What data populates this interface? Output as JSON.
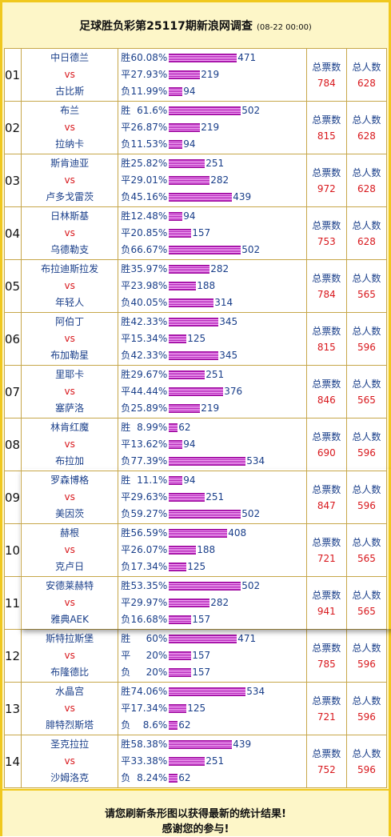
{
  "header": {
    "title": "足球胜负彩第25117期新浪网调查",
    "date": "(08-22 00:00)"
  },
  "labels": {
    "vs": "vs",
    "total_votes": "总票数",
    "total_people": "总人数"
  },
  "matches": [
    {
      "num": "01",
      "home": "中日德兰",
      "away": "古比斯",
      "rows": [
        {
          "label": "胜",
          "pct": "60.08%",
          "count": "471",
          "value": 471
        },
        {
          "label": "平",
          "pct": "27.93%",
          "count": "219",
          "value": 219
        },
        {
          "label": "负",
          "pct": "11.99%",
          "count": "94",
          "value": 94
        }
      ],
      "votes": "784",
      "people": "628"
    },
    {
      "num": "02",
      "home": "布兰",
      "away": "拉纳卡",
      "rows": [
        {
          "label": "胜",
          "pct": "61.6%",
          "count": "502",
          "value": 502
        },
        {
          "label": "平",
          "pct": "26.87%",
          "count": "219",
          "value": 219
        },
        {
          "label": "负",
          "pct": "11.53%",
          "count": "94",
          "value": 94
        }
      ],
      "votes": "815",
      "people": "628"
    },
    {
      "num": "03",
      "home": "斯肯迪亚",
      "away": "卢多戈雷茨",
      "rows": [
        {
          "label": "胜",
          "pct": "25.82%",
          "count": "251",
          "value": 251
        },
        {
          "label": "平",
          "pct": "29.01%",
          "count": "282",
          "value": 282
        },
        {
          "label": "负",
          "pct": "45.16%",
          "count": "439",
          "value": 439
        }
      ],
      "votes": "972",
      "people": "628"
    },
    {
      "num": "04",
      "home": "日林斯基",
      "away": "乌德勒支",
      "rows": [
        {
          "label": "胜",
          "pct": "12.48%",
          "count": "94",
          "value": 94
        },
        {
          "label": "平",
          "pct": "20.85%",
          "count": "157",
          "value": 157
        },
        {
          "label": "负",
          "pct": "66.67%",
          "count": "502",
          "value": 502
        }
      ],
      "votes": "753",
      "people": "628"
    },
    {
      "num": "05",
      "home": "布拉迪斯拉发",
      "away": "年轻人",
      "rows": [
        {
          "label": "胜",
          "pct": "35.97%",
          "count": "282",
          "value": 282
        },
        {
          "label": "平",
          "pct": "23.98%",
          "count": "188",
          "value": 188
        },
        {
          "label": "负",
          "pct": "40.05%",
          "count": "314",
          "value": 314
        }
      ],
      "votes": "784",
      "people": "565"
    },
    {
      "num": "06",
      "home": "阿伯丁",
      "away": "布加勒星",
      "rows": [
        {
          "label": "胜",
          "pct": "42.33%",
          "count": "345",
          "value": 345
        },
        {
          "label": "平",
          "pct": "15.34%",
          "count": "125",
          "value": 125
        },
        {
          "label": "负",
          "pct": "42.33%",
          "count": "345",
          "value": 345
        }
      ],
      "votes": "815",
      "people": "596"
    },
    {
      "num": "07",
      "home": "里耶卡",
      "away": "塞萨洛",
      "rows": [
        {
          "label": "胜",
          "pct": "29.67%",
          "count": "251",
          "value": 251
        },
        {
          "label": "平",
          "pct": "44.44%",
          "count": "376",
          "value": 376
        },
        {
          "label": "负",
          "pct": "25.89%",
          "count": "219",
          "value": 219
        }
      ],
      "votes": "846",
      "people": "565"
    },
    {
      "num": "08",
      "home": "林肯红魔",
      "away": "布拉加",
      "rows": [
        {
          "label": "胜",
          "pct": "8.99%",
          "count": "62",
          "value": 62
        },
        {
          "label": "平",
          "pct": "13.62%",
          "count": "94",
          "value": 94
        },
        {
          "label": "负",
          "pct": "77.39%",
          "count": "534",
          "value": 534
        }
      ],
      "votes": "690",
      "people": "596"
    },
    {
      "num": "09",
      "home": "罗森博格",
      "away": "美因茨",
      "rows": [
        {
          "label": "胜",
          "pct": "11.1%",
          "count": "94",
          "value": 94
        },
        {
          "label": "平",
          "pct": "29.63%",
          "count": "251",
          "value": 251
        },
        {
          "label": "负",
          "pct": "59.27%",
          "count": "502",
          "value": 502
        }
      ],
      "votes": "847",
      "people": "596"
    },
    {
      "num": "10",
      "home": "赫根",
      "away": "克卢日",
      "rows": [
        {
          "label": "胜",
          "pct": "56.59%",
          "count": "408",
          "value": 408
        },
        {
          "label": "平",
          "pct": "26.07%",
          "count": "188",
          "value": 188
        },
        {
          "label": "负",
          "pct": "17.34%",
          "count": "125",
          "value": 125
        }
      ],
      "votes": "721",
      "people": "565"
    },
    {
      "num": "11",
      "home": "安德莱赫特",
      "away": "雅典AEK",
      "rows": [
        {
          "label": "胜",
          "pct": "53.35%",
          "count": "502",
          "value": 502
        },
        {
          "label": "平",
          "pct": "29.97%",
          "count": "282",
          "value": 282
        },
        {
          "label": "负",
          "pct": "16.68%",
          "count": "157",
          "value": 157
        }
      ],
      "votes": "941",
      "people": "565"
    },
    {
      "num": "12",
      "home": "斯特拉斯堡",
      "away": "布隆德比",
      "rows": [
        {
          "label": "胜",
          "pct": "60%",
          "count": "471",
          "value": 471
        },
        {
          "label": "平",
          "pct": "20%",
          "count": "157",
          "value": 157
        },
        {
          "label": "负",
          "pct": "20%",
          "count": "157",
          "value": 157
        }
      ],
      "votes": "785",
      "people": "596"
    },
    {
      "num": "13",
      "home": "水晶宫",
      "away": "腓特烈斯塔",
      "rows": [
        {
          "label": "胜",
          "pct": "74.06%",
          "count": "534",
          "value": 534
        },
        {
          "label": "平",
          "pct": "17.34%",
          "count": "125",
          "value": 125
        },
        {
          "label": "负",
          "pct": "8.6%",
          "count": "62",
          "value": 62
        }
      ],
      "votes": "721",
      "people": "596"
    },
    {
      "num": "14",
      "home": "圣克拉拉",
      "away": "沙姆洛克",
      "rows": [
        {
          "label": "胜",
          "pct": "58.38%",
          "count": "439",
          "value": 439
        },
        {
          "label": "平",
          "pct": "33.38%",
          "count": "251",
          "value": 251
        },
        {
          "label": "负",
          "pct": "8.24%",
          "count": "62",
          "value": 62
        }
      ],
      "votes": "752",
      "people": "596"
    }
  ],
  "footer": {
    "line1": "请您刷新条形图以获得最新的统计结果!",
    "line2": "感谢您的参与!"
  }
}
